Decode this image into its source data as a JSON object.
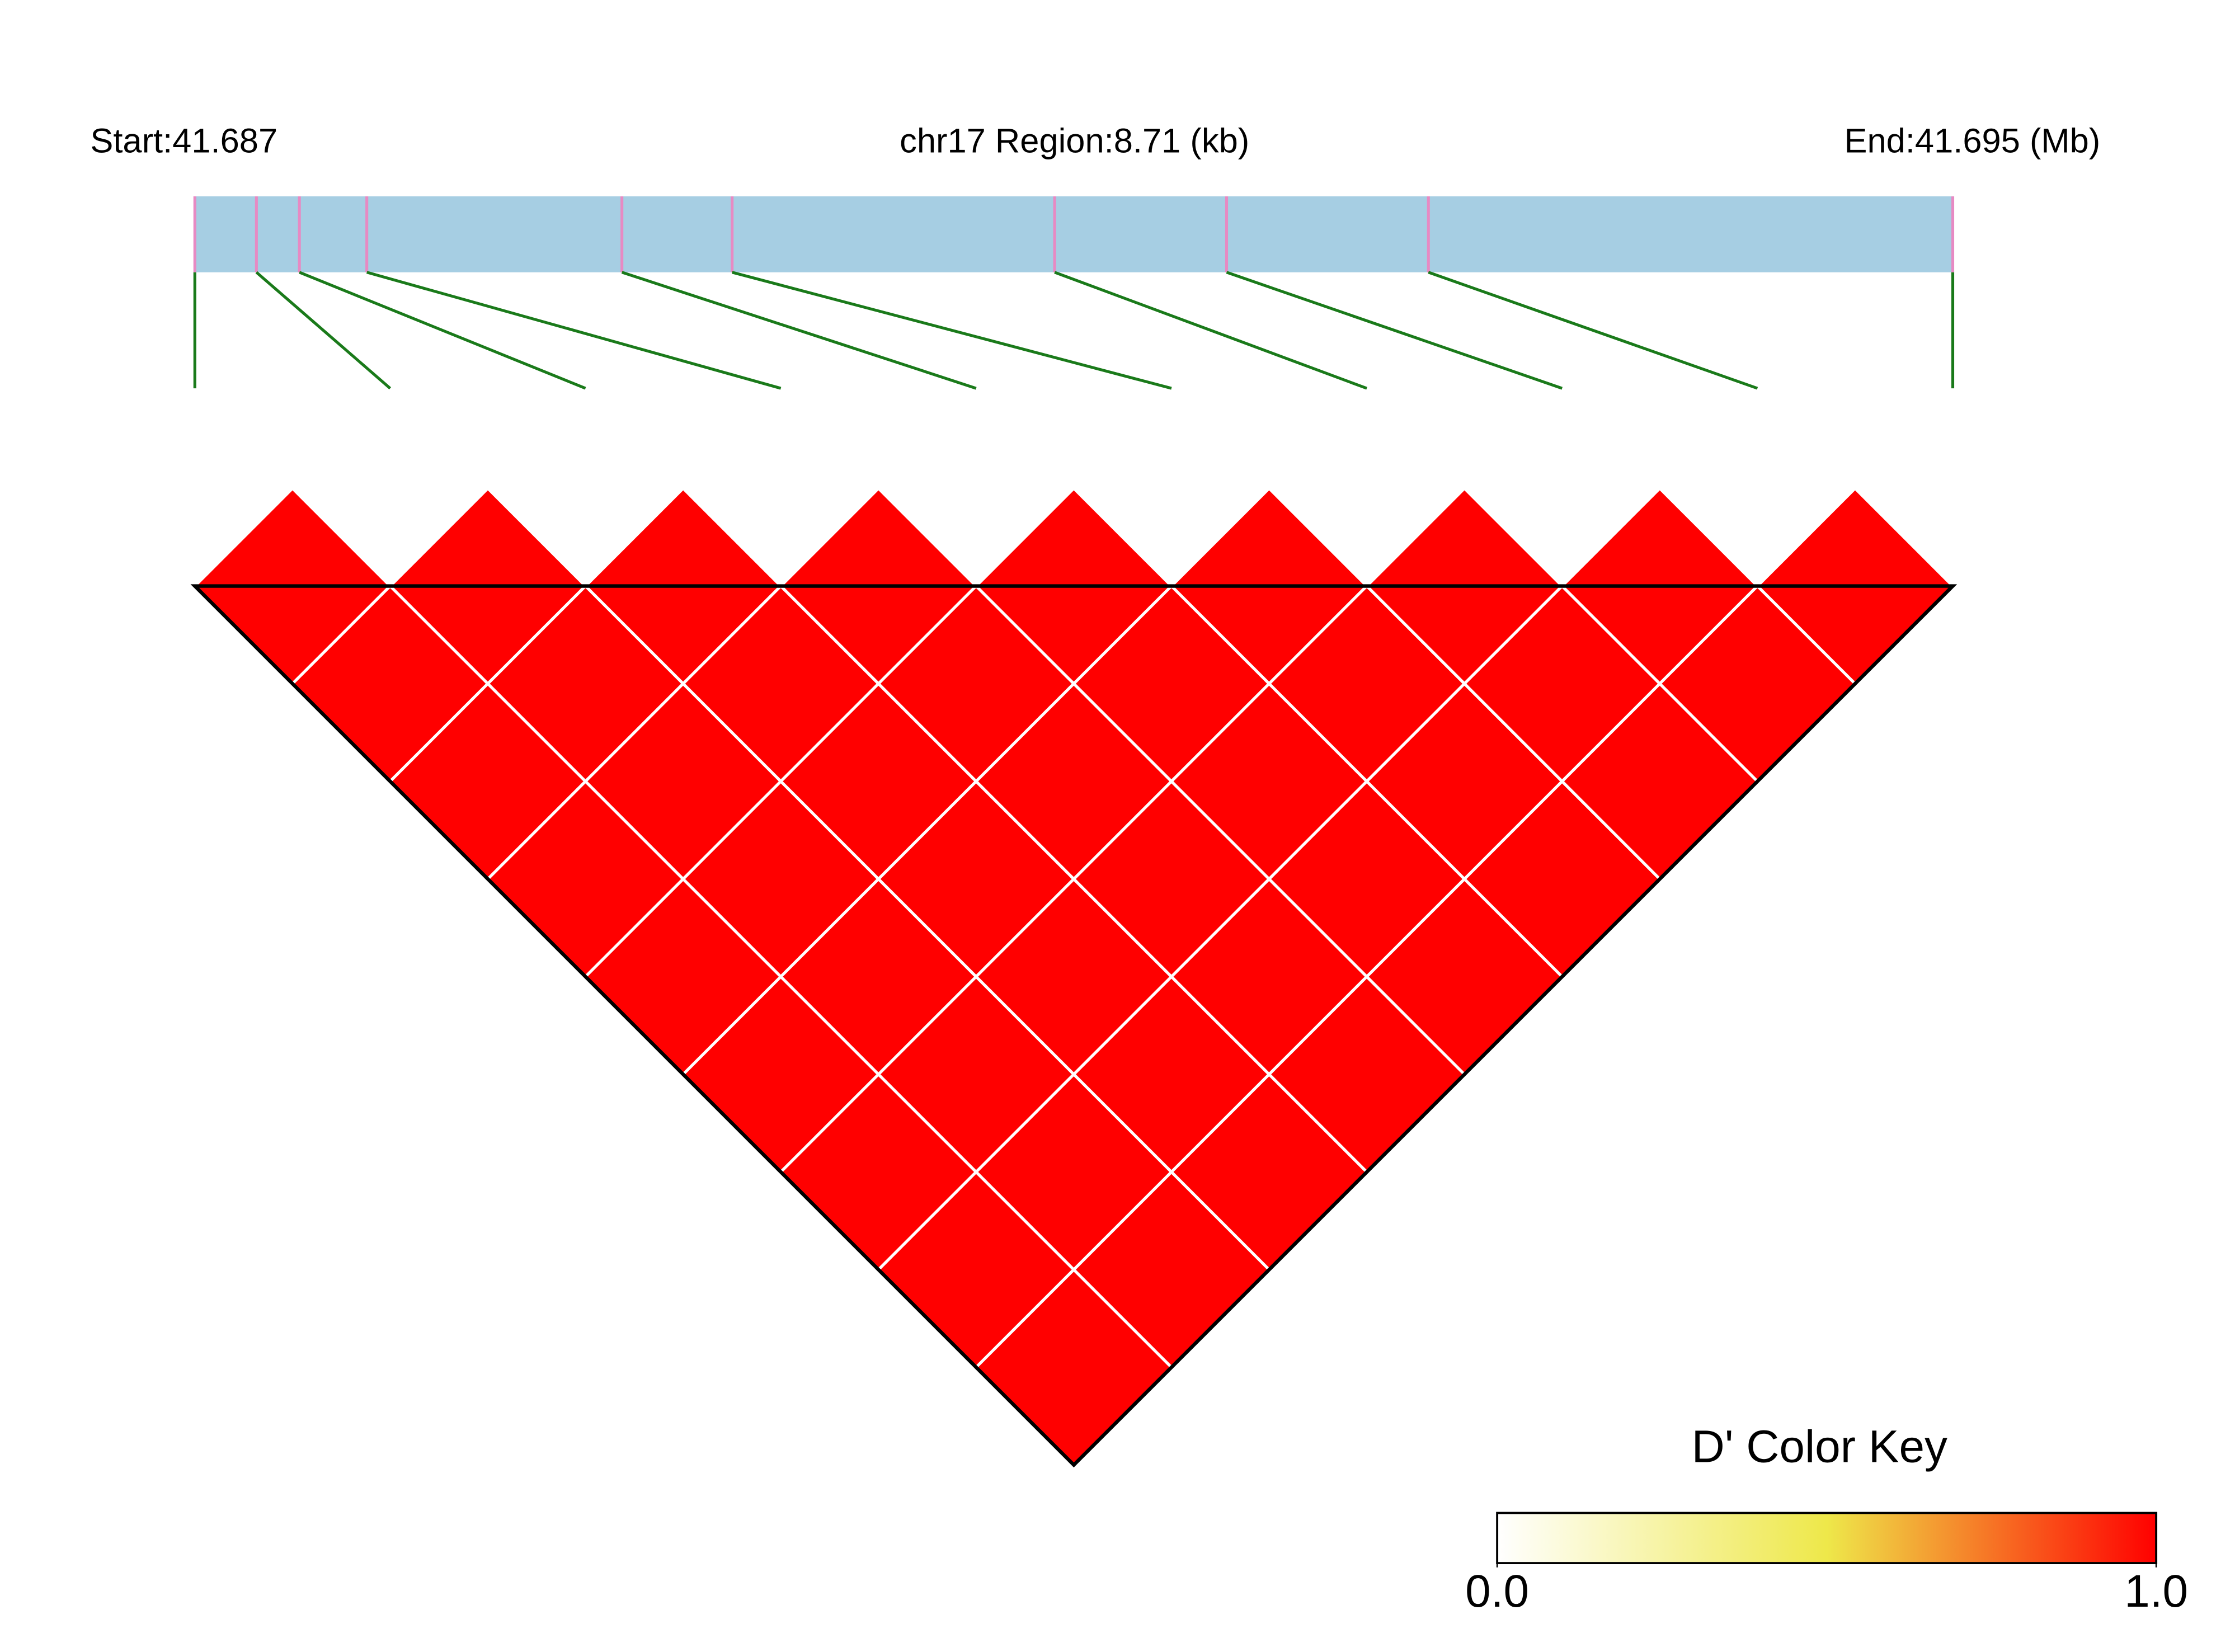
{
  "chart_data": {
    "type": "ld-heatmap",
    "start_label": "Start:41.687",
    "region_label": "chr17 Region:8.71 (kb)",
    "end_label": "End:41.695 (Mb)",
    "xlim": [
      0,
      8.71
    ],
    "snp_positions": [
      0,
      0.305,
      0.518,
      0.852,
      2.116,
      2.662,
      4.26,
      5.112,
      6.112,
      8.71
    ],
    "bar_color": "#a6cee3",
    "tick_color": "#e78ac3",
    "connector_color": "#1a7a1a",
    "dprime": [
      [
        1,
        1,
        1,
        1,
        1,
        1,
        1,
        1,
        1
      ],
      [
        1,
        1,
        1,
        1,
        1,
        1,
        1,
        1
      ],
      [
        1,
        1,
        1,
        1,
        1,
        1,
        1
      ],
      [
        1,
        1,
        1,
        1,
        1,
        1
      ],
      [
        1,
        1,
        1,
        1,
        1
      ],
      [
        1,
        1,
        1,
        1
      ],
      [
        1,
        1,
        1
      ],
      [
        1,
        1
      ],
      [
        1
      ]
    ],
    "color_key": {
      "title": "D' Color Key",
      "colors": [
        "#ffffff",
        "#eee84a",
        "#ff0000"
      ],
      "lim": [
        0,
        1
      ],
      "ticks": [
        {
          "value": 0,
          "label": "0.0"
        },
        {
          "value": 1,
          "label": "1.0"
        }
      ]
    }
  }
}
